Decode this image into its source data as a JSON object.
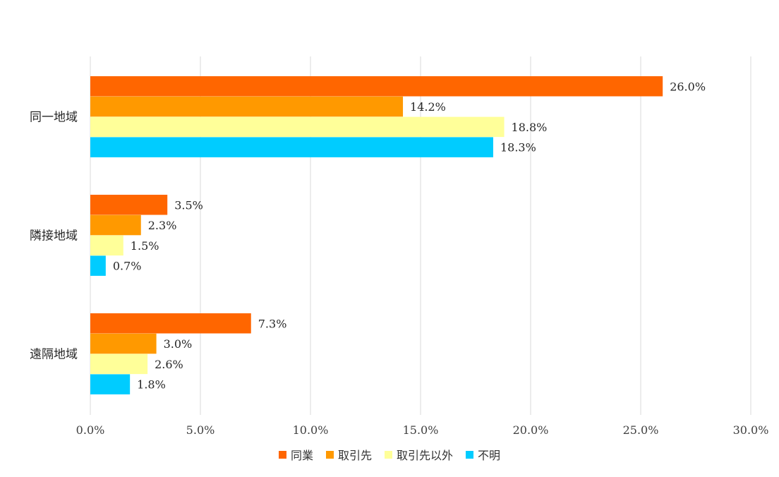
{
  "chart_data": {
    "type": "bar",
    "orientation": "horizontal",
    "title": "",
    "xlabel": "",
    "ylabel": "",
    "xlim": [
      0,
      30
    ],
    "x_ticks": [
      "0.0%",
      "5.0%",
      "10.0%",
      "15.0%",
      "20.0%",
      "25.0%",
      "30.0%"
    ],
    "grid": true,
    "legend_position": "bottom-center",
    "categories": [
      "同一地域",
      "隣接地域",
      "遠隔地域"
    ],
    "series": [
      {
        "name": "同業",
        "color": "#ff6600",
        "values": [
          26.0,
          3.5,
          7.3
        ],
        "labels": [
          "26.0%",
          "3.5%",
          "7.3%"
        ]
      },
      {
        "name": "取引先",
        "color": "#ff9900",
        "values": [
          14.2,
          2.3,
          3.0
        ],
        "labels": [
          "14.2%",
          "2.3%",
          "3.0%"
        ]
      },
      {
        "name": "取引先以外",
        "color": "#ffff99",
        "values": [
          18.8,
          1.5,
          2.6
        ],
        "labels": [
          "18.8%",
          "1.5%",
          "2.6%"
        ]
      },
      {
        "name": "不明",
        "color": "#00ccff",
        "values": [
          18.3,
          0.7,
          1.8
        ],
        "labels": [
          "18.3%",
          "0.7%",
          "1.8%"
        ]
      }
    ]
  }
}
